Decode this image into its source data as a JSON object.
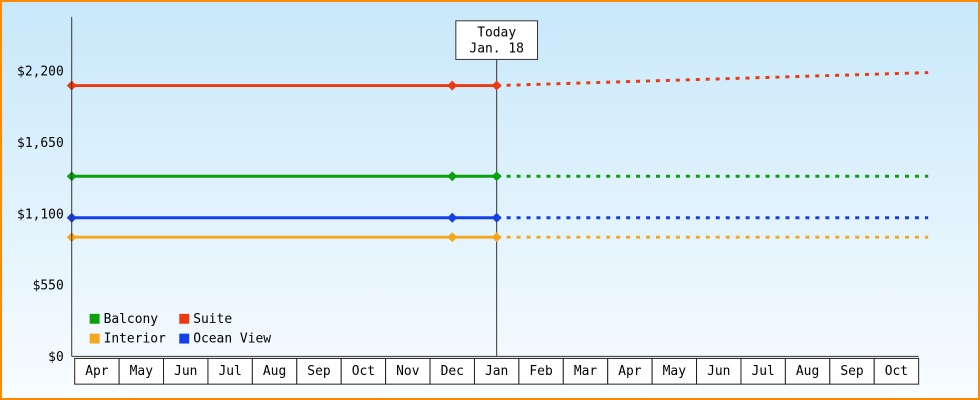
{
  "colors": {
    "frame_border": "#ff8a00",
    "axis": "#333333",
    "plot_bg_top": "#c8e8fa",
    "plot_bg_bottom": "#f8fcff",
    "cell_bg": "#ffffff",
    "box_bg": "#ffffff",
    "text": "#000000"
  },
  "today_box": {
    "line1": "Today",
    "line2": "Jan. 18"
  },
  "chart_data": {
    "type": "line",
    "title": "",
    "categories": [
      "Apr",
      "May",
      "Jun",
      "Jul",
      "Aug",
      "Sep",
      "Oct",
      "Nov",
      "Dec",
      "Jan",
      "Feb",
      "Mar",
      "Apr",
      "May",
      "Jun",
      "Jul",
      "Aug",
      "Sep",
      "Oct"
    ],
    "today_index": 9,
    "today_label": "Jan. 18",
    "ylim": [
      0,
      2200
    ],
    "y_ticks": [
      {
        "value": 0,
        "label": "$0"
      },
      {
        "value": 550,
        "label": "$550"
      },
      {
        "value": 1100,
        "label": "$1,100"
      },
      {
        "value": 1650,
        "label": "$1,650"
      },
      {
        "value": 2200,
        "label": "$2,200"
      }
    ],
    "series": [
      {
        "name": "Balcony",
        "color": "#0ca00c",
        "history_value": 1390,
        "forecast_end_value": 1390
      },
      {
        "name": "Suite",
        "color": "#ee3a10",
        "history_value": 2090,
        "forecast_end_value": 2190
      },
      {
        "name": "Interior",
        "color": "#f4a61c",
        "history_value": 920,
        "forecast_end_value": 920
      },
      {
        "name": "Ocean View",
        "color": "#1440e8",
        "history_value": 1070,
        "forecast_end_value": 1070
      }
    ],
    "marker_month_indices": [
      8,
      9
    ],
    "markers_at_line_start": true,
    "legend_rows": [
      [
        "Balcony",
        "Suite"
      ],
      [
        "Interior",
        "Ocean View"
      ]
    ],
    "legend_position": "bottom-left-inside",
    "grid": false
  }
}
